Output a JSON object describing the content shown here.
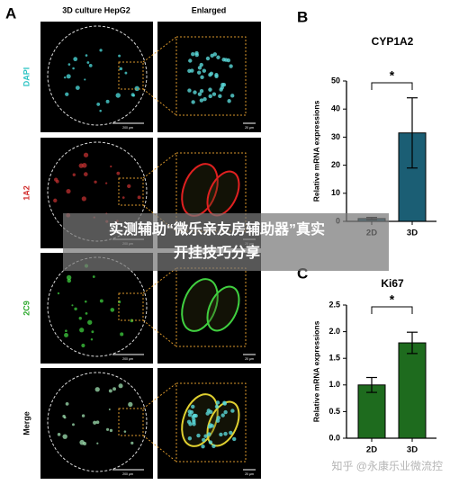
{
  "figure": {
    "panel_labels": [
      "A",
      "B",
      "C"
    ],
    "column_headers": [
      "3D culture HepG2",
      "Enlarged"
    ],
    "row_labels": [
      "DAPI",
      "1A2",
      "2C9",
      "Merge"
    ],
    "scale_bars": [
      "200 μm",
      "20 μm"
    ]
  },
  "chart_data": [
    {
      "type": "bar",
      "title": "CYP1A2",
      "y_label": "Relative mRNA expressions",
      "categories": [
        "2D",
        "3D"
      ],
      "values": [
        1,
        31.5
      ],
      "errors": [
        0.4,
        12.5
      ],
      "color": "#1b5e74",
      "ylim": [
        0,
        50
      ],
      "yticks": [
        0,
        10,
        20,
        30,
        40,
        50
      ],
      "significance": "*"
    },
    {
      "type": "bar",
      "title": "Ki67",
      "y_label": "Relative mRNA expressions",
      "categories": [
        "2D",
        "3D"
      ],
      "values": [
        1.0,
        1.79
      ],
      "errors": [
        0.14,
        0.2
      ],
      "color": "#1e6b1e",
      "ylim": [
        0,
        2.5
      ],
      "yticks": [
        {
          "value": 0,
          "label": "0.0"
        },
        0.5,
        {
          "value": 1,
          "label": "1.0"
        },
        1.5,
        {
          "value": 2,
          "label": "2.0"
        },
        2.5
      ],
      "significance": "*"
    }
  ],
  "overlay": {
    "banner": [
      "实测辅助“微乐亲友房辅助器”真实",
      "开挂技巧分享"
    ],
    "watermark": "知乎 @永康乐业微流控"
  }
}
